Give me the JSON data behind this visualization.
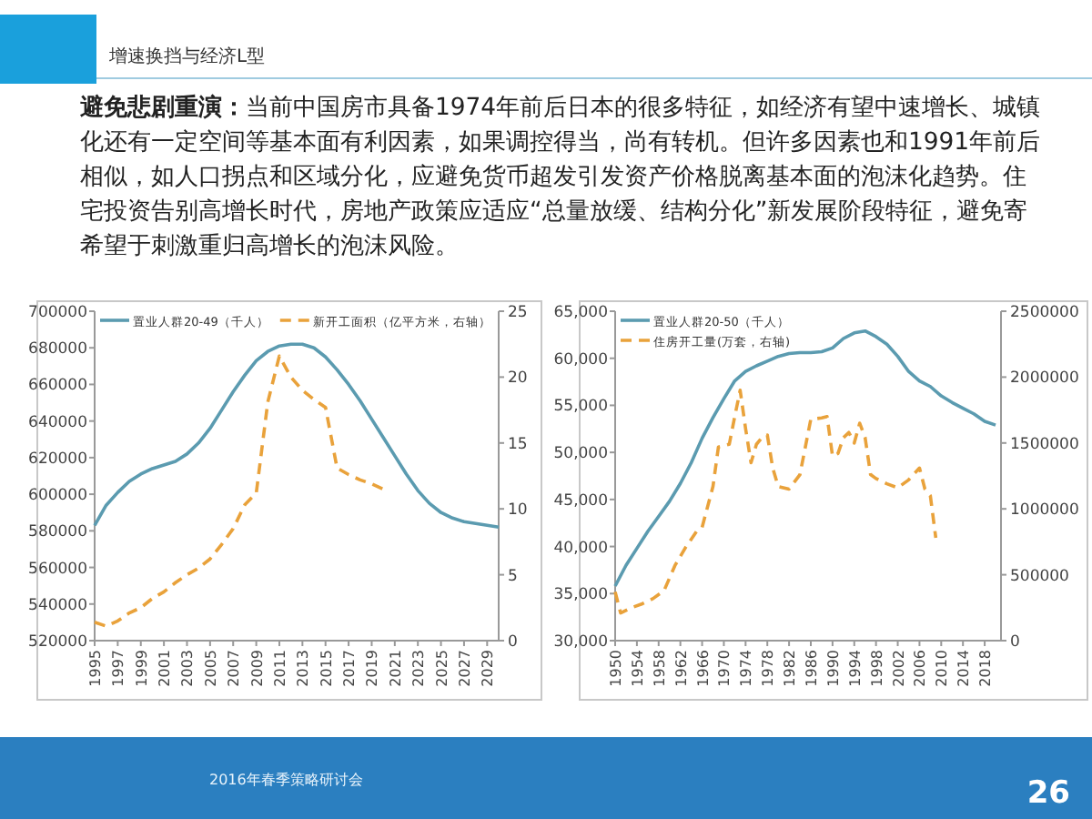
{
  "chart_data": [
    {
      "type": "other",
      "title": "增速换挡与经济L型",
      "subtitle": "避免悲剧重演：当前中国房市具备1974年前后日本的很多特征，如经济有望中速增长、城镇化还有一定空间等基本面有利因素，如果调控得当，尚有转机。但许多因素也和1991年前后相似，如人口拐点和区域分化，应避免货币超发引发资产价格脱离基本面的泡沫化趋势。住宅投资告别高增长时代，房地产政策应适应“总量放缓、结构分化”新发展阶段特征，避免寄希望于刺激重归高增长的泡沫风险。",
      "annotations": [
        "2016年春季策略研讨会",
        "26"
      ]
    },
    {
      "type": "line",
      "x": [
        1995,
        1996,
        1997,
        1998,
        1999,
        2000,
        2001,
        2002,
        2003,
        2004,
        2005,
        2006,
        2007,
        2008,
        2009,
        2010,
        2011,
        2012,
        2013,
        2014,
        2015,
        2016,
        2017,
        2018,
        2019,
        2020,
        2021,
        2022,
        2023,
        2024,
        2025,
        2026,
        2027,
        2028,
        2029,
        2030
      ],
      "series": [
        {
          "name": "置业人群20-49（千人）",
          "color": "#5b9bb0",
          "line_style": "solid",
          "values": [
            583000,
            594000,
            601000,
            607000,
            611000,
            614000,
            616000,
            618000,
            622000,
            628000,
            636000,
            646000,
            656000,
            665000,
            673000,
            678000,
            681000,
            682000,
            682000,
            680000,
            675000,
            668000,
            660000,
            651000,
            641000,
            631000,
            621000,
            611000,
            602000,
            595000,
            590000,
            587000,
            585000,
            584000,
            583000,
            582000
          ]
        },
        {
          "name": "新开工面积（亿平方米，右轴）",
          "color": "#e9a23b",
          "line_style": "dashed",
          "axis": "y2",
          "x": [
            1995,
            1996,
            1997,
            1998,
            1999,
            2000,
            2001,
            2002,
            2003,
            2004,
            2005,
            2006,
            2007,
            2008,
            2009,
            2010,
            2011,
            2012,
            2013,
            2014,
            2015,
            2016,
            2017,
            2018,
            2019,
            2020
          ],
          "values": [
            1.4,
            1.1,
            1.5,
            2.1,
            2.5,
            3.2,
            3.7,
            4.4,
            5.0,
            5.5,
            6.2,
            7.3,
            8.5,
            10.3,
            11.2,
            18.1,
            21.6,
            20.0,
            19.0,
            18.3,
            17.7,
            13.1,
            12.6,
            12.2,
            11.9,
            11.5
          ]
        }
      ],
      "xlim": [
        1995,
        2030
      ],
      "xticks": [
        1995,
        1997,
        1999,
        2001,
        2003,
        2005,
        2007,
        2009,
        2011,
        2013,
        2015,
        2017,
        2019,
        2021,
        2023,
        2025,
        2027,
        2029
      ],
      "ylim": [
        520000,
        700000
      ],
      "yticks": [
        520000,
        540000,
        560000,
        580000,
        600000,
        620000,
        640000,
        660000,
        680000,
        700000
      ],
      "y2lim": [
        0,
        25
      ],
      "y2ticks": [
        0,
        5,
        10,
        15,
        20,
        25
      ],
      "legend": "top",
      "grid": false,
      "marker": "none"
    },
    {
      "type": "line",
      "x": [
        1950,
        1952,
        1954,
        1956,
        1958,
        1960,
        1962,
        1964,
        1966,
        1968,
        1970,
        1972,
        1974,
        1976,
        1978,
        1980,
        1982,
        1984,
        1986,
        1988,
        1990,
        1992,
        1994,
        1996,
        1998,
        2000,
        2002,
        2004,
        2006,
        2008,
        2010,
        2012,
        2014,
        2016,
        2018,
        2020
      ],
      "series": [
        {
          "name": "置业人群20-50（千人）",
          "color": "#5b9bb0",
          "line_style": "solid",
          "values": [
            35800,
            38000,
            39800,
            41600,
            43200,
            44800,
            46700,
            48900,
            51500,
            53700,
            55700,
            57600,
            58600,
            59200,
            59700,
            60200,
            60500,
            60600,
            60600,
            60700,
            61100,
            62100,
            62700,
            62900,
            62300,
            61500,
            60200,
            58600,
            57600,
            57000,
            56000,
            55300,
            54700,
            54100,
            53300,
            52900
          ]
        },
        {
          "name": "住房开工量(万套，右轴)",
          "color": "#e9a23b",
          "line_style": "dashed",
          "axis": "y2",
          "x": [
            1950,
            1951,
            1953,
            1955,
            1957,
            1959,
            1961,
            1963,
            1965,
            1966,
            1968,
            1969,
            1971,
            1972,
            1973,
            1974,
            1975,
            1976,
            1977,
            1978,
            1979,
            1980,
            1982,
            1984,
            1986,
            1988,
            1989,
            1990,
            1991,
            1992,
            1993,
            1994,
            1995,
            1996,
            1997,
            1998,
            2000,
            2002,
            2004,
            2006,
            2007,
            2008,
            2009
          ],
          "values": [
            370000,
            210000,
            250000,
            280000,
            320000,
            380000,
            570000,
            710000,
            830000,
            860000,
            1170000,
            1470000,
            1490000,
            1700000,
            1900000,
            1610000,
            1350000,
            1490000,
            1540000,
            1560000,
            1310000,
            1170000,
            1150000,
            1260000,
            1680000,
            1690000,
            1700000,
            1400000,
            1420000,
            1540000,
            1580000,
            1500000,
            1650000,
            1540000,
            1260000,
            1230000,
            1190000,
            1160000,
            1220000,
            1310000,
            1150000,
            1100000,
            780000
          ]
        }
      ],
      "xlim": [
        1950,
        2021
      ],
      "xticks": [
        1950,
        1954,
        1958,
        1962,
        1966,
        1970,
        1974,
        1978,
        1982,
        1986,
        1990,
        1994,
        1998,
        2002,
        2006,
        2010,
        2014,
        2018
      ],
      "ylim": [
        30000,
        65000
      ],
      "yticks": [
        {
          "value": 30000,
          "label": "30,000"
        },
        {
          "value": 35000,
          "label": "35,000"
        },
        {
          "value": 40000,
          "label": "40,000"
        },
        {
          "value": 45000,
          "label": "45,000"
        },
        {
          "value": 50000,
          "label": "50,000"
        },
        {
          "value": 55000,
          "label": "55,000"
        },
        {
          "value": 60000,
          "label": "60,000"
        },
        {
          "value": 65000,
          "label": "65,000"
        }
      ],
      "y2lim": [
        0,
        2500000
      ],
      "y2ticks": [
        0,
        500000,
        1000000,
        1500000,
        2000000,
        2500000
      ],
      "legend": "top left",
      "grid": false,
      "marker": "none"
    }
  ]
}
